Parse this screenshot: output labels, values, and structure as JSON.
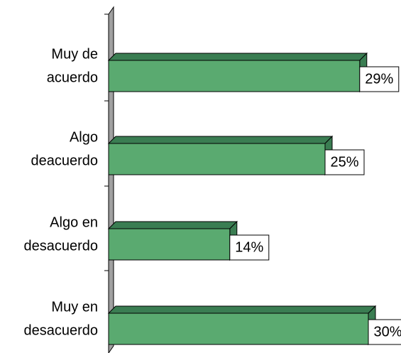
{
  "chart_data": {
    "type": "bar",
    "orientation": "horizontal",
    "categories": [
      [
        "Muy de",
        "acuerdo"
      ],
      [
        "Algo",
        "deacuerdo"
      ],
      [
        "Algo en",
        "desacuerdo"
      ],
      [
        "Muy en",
        "desacuerdo"
      ]
    ],
    "values": [
      29,
      25,
      14,
      30
    ],
    "value_labels": [
      "29%",
      "25%",
      "14%",
      "30%"
    ],
    "color": "#5aaa70"
  }
}
